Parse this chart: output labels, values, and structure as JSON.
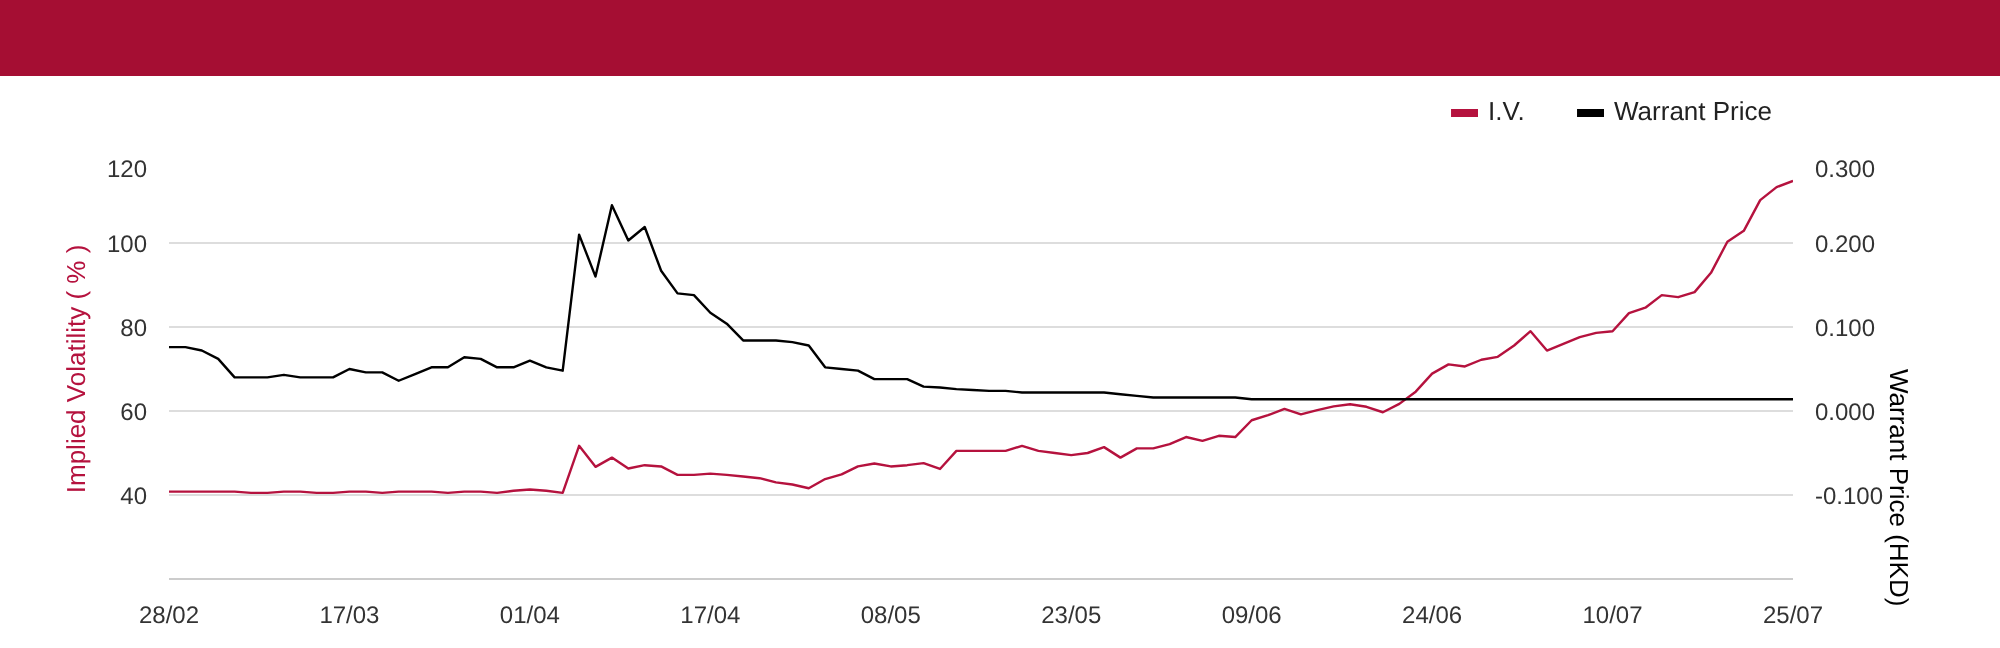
{
  "chart_data": {
    "type": "line",
    "categories": [
      "28/02",
      null,
      null,
      null,
      null,
      null,
      null,
      null,
      null,
      null,
      null,
      "17/03",
      null,
      null,
      null,
      null,
      null,
      null,
      null,
      null,
      null,
      null,
      "01/04",
      null,
      null,
      null,
      null,
      null,
      null,
      null,
      null,
      null,
      null,
      "17/04",
      null,
      null,
      null,
      null,
      null,
      null,
      null,
      null,
      null,
      null,
      "08/05",
      null,
      null,
      null,
      null,
      null,
      null,
      null,
      null,
      null,
      null,
      "23/05",
      null,
      null,
      null,
      null,
      null,
      null,
      null,
      null,
      null,
      null,
      "09/06",
      null,
      null,
      null,
      null,
      null,
      null,
      null,
      null,
      null,
      null,
      "24/06",
      null,
      null,
      null,
      null,
      null,
      null,
      null,
      null,
      null,
      null,
      "10/07",
      null,
      null,
      null,
      null,
      null,
      null,
      null,
      null,
      null,
      null,
      "25/07"
    ],
    "series": [
      {
        "name": "I.V.",
        "color": "#b5123e",
        "axis": "y",
        "values": [
          40.8,
          40.8,
          40.8,
          40.8,
          40.8,
          40.5,
          40.5,
          40.8,
          40.8,
          40.5,
          40.5,
          40.8,
          40.8,
          40.5,
          40.8,
          40.8,
          40.8,
          40.5,
          40.8,
          40.8,
          40.5,
          41.0,
          41.3,
          41.0,
          40.5,
          51.7,
          46.7,
          48.9,
          46.3,
          47.1,
          46.8,
          44.8,
          44.8,
          45.1,
          44.8,
          44.4,
          44.0,
          43.0,
          42.5,
          41.6,
          43.8,
          44.9,
          46.8,
          47.5,
          46.8,
          47.1,
          47.6,
          46.2,
          50.5,
          50.5,
          50.5,
          50.5,
          51.7,
          50.5,
          50.0,
          49.5,
          50.0,
          51.4,
          48.9,
          51.1,
          51.1,
          52.1,
          53.8,
          52.9,
          54.1,
          53.8,
          57.8,
          59.0,
          60.5,
          59.2,
          60.2,
          61.1,
          61.6,
          61.0,
          59.7,
          61.7,
          64.6,
          68.9,
          71.1,
          70.6,
          72.2,
          72.9,
          75.6,
          79.0,
          74.4,
          76.0,
          77.6,
          78.6,
          79.0,
          83.3,
          84.6,
          87.6,
          87.1,
          88.3,
          92.9,
          100.3,
          102.9,
          110.2,
          113.3,
          114.8
        ]
      },
      {
        "name": "Warrant Price",
        "color": "#000000",
        "axis": "y2",
        "values": [
          0.076,
          0.076,
          0.072,
          0.062,
          0.04,
          0.04,
          0.04,
          0.043,
          0.04,
          0.04,
          0.04,
          0.05,
          0.046,
          0.046,
          0.036,
          0.044,
          0.052,
          0.052,
          0.064,
          0.062,
          0.052,
          0.052,
          0.06,
          0.052,
          0.048,
          0.21,
          0.16,
          0.245,
          0.203,
          0.219,
          0.167,
          0.14,
          0.138,
          0.117,
          0.104,
          0.084,
          0.084,
          0.084,
          0.082,
          0.078,
          0.052,
          0.05,
          0.048,
          0.038,
          0.038,
          0.038,
          0.029,
          0.028,
          0.026,
          0.025,
          0.024,
          0.024,
          0.022,
          0.022,
          0.022,
          0.022,
          0.022,
          0.022,
          0.02,
          0.018,
          0.016,
          0.016,
          0.016,
          0.016,
          0.016,
          0.016,
          0.014,
          0.014,
          0.014,
          0.014,
          0.014,
          0.014,
          0.014,
          0.014,
          0.014,
          0.014,
          0.014,
          0.014,
          0.014,
          0.014,
          0.014,
          0.014,
          0.014,
          0.014,
          0.014,
          0.014,
          0.014,
          0.014,
          0.014,
          0.014,
          0.014,
          0.014,
          0.014,
          0.014,
          0.014,
          0.014,
          0.014,
          0.014,
          0.014,
          0.014
        ]
      }
    ],
    "ylabel": "Implied Volatility ( % )",
    "y2label": "Warrant Price (HKD)",
    "ylim": [
      20,
      120
    ],
    "yticks": [
      40,
      60,
      80,
      100,
      120
    ],
    "y2lim": [
      -0.2,
      0.3
    ],
    "y2ticks": [
      {
        "value": -0.1,
        "label": "-0.100"
      },
      {
        "value": 0,
        "label": "0.000"
      },
      {
        "value": 0.1,
        "label": "0.100"
      },
      {
        "value": 0.2,
        "label": "0.200"
      },
      {
        "value": 0.3,
        "label": "0.300"
      }
    ],
    "grid": "y",
    "legend": "top right"
  }
}
